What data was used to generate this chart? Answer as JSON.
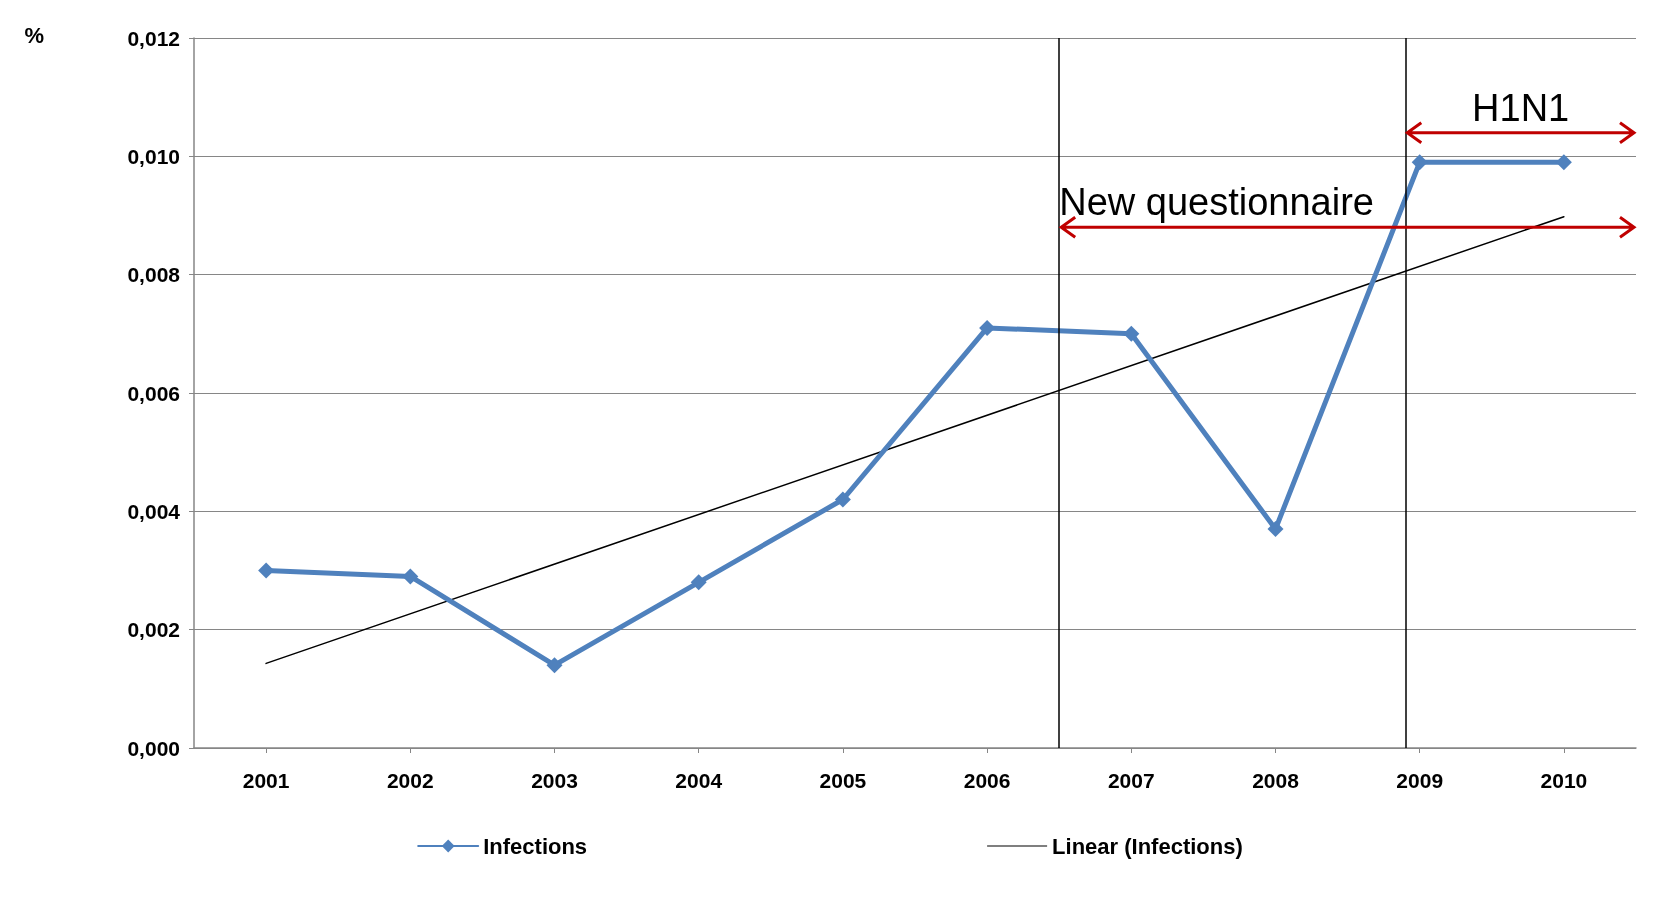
{
  "chart_data": {
    "type": "line",
    "ylabel": "%",
    "x": [
      2001,
      2002,
      2003,
      2004,
      2005,
      2006,
      2007,
      2008,
      2009,
      2010
    ],
    "xlim": [
      2000.5,
      2010.5
    ],
    "xticks": [
      2001,
      2002,
      2003,
      2004,
      2005,
      2006,
      2007,
      2008,
      2009,
      2010
    ],
    "ylim": [
      0,
      0.012
    ],
    "yticks": [
      {
        "value": 0,
        "label": "0,000"
      },
      {
        "value": 0.002,
        "label": "0,002"
      },
      {
        "value": 0.004,
        "label": "0,004"
      },
      {
        "value": 0.006,
        "label": "0,006"
      },
      {
        "value": 0.008,
        "label": "0,008"
      },
      {
        "value": 0.01,
        "label": "0,010"
      },
      {
        "value": 0.012,
        "label": "0,012"
      }
    ],
    "series": [
      {
        "name": "Infections",
        "color": "#4f81bd",
        "marker": "diamond",
        "values": [
          0.003,
          0.0029,
          0.0014,
          0.0028,
          0.0042,
          0.0071,
          0.007,
          0.0037,
          0.0099,
          0.0099
        ]
      },
      {
        "name": "Linear (Infections)",
        "color": "#000000",
        "marker": "none",
        "x": [
          2001,
          2010
        ],
        "values": [
          0.00143,
          0.00898
        ]
      }
    ],
    "ref_lines": [
      {
        "axis": "x",
        "value": 2006.5,
        "color": "#000000"
      },
      {
        "axis": "x",
        "value": 2008.9,
        "color": "#000000"
      }
    ],
    "annotations": [
      {
        "text": "New questionnaire",
        "x": 2006.5,
        "y": 0.0088
      },
      {
        "text": "H1N1",
        "x": 2008.9,
        "y": 0.0104
      }
    ],
    "grid": "y",
    "legend": "bottom"
  }
}
